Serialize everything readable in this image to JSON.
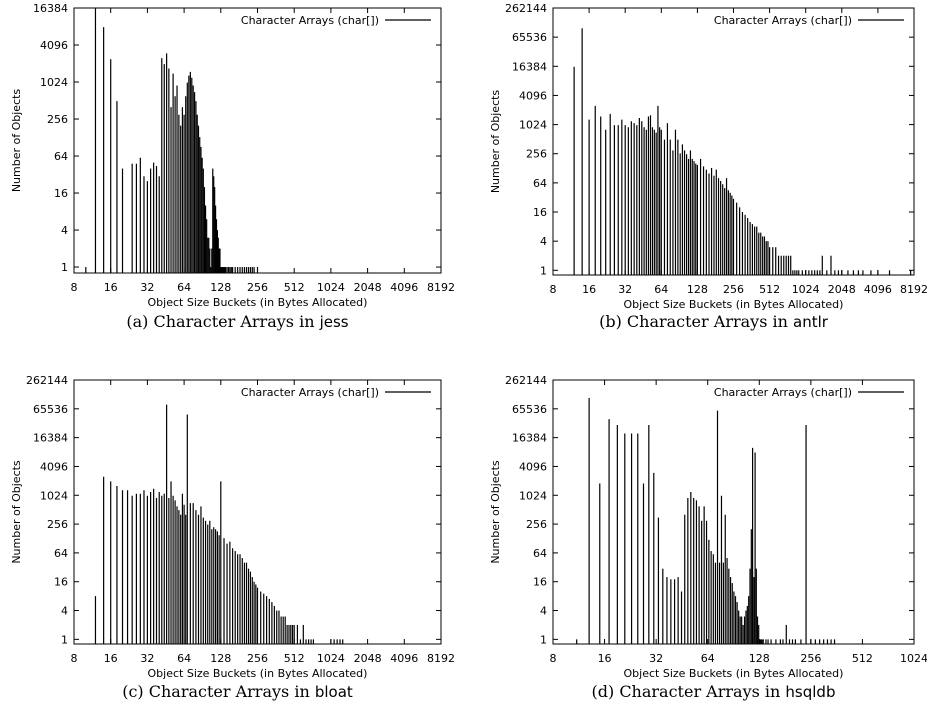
{
  "chart_data": [
    {
      "type": "bar",
      "caption": {
        "prefix": "(a) Character Arrays in ",
        "benchmark": "jess"
      },
      "xlabel": "Object Size Buckets (in Bytes Allocated)",
      "ylabel": "Number of Objects",
      "x_scale": "log2",
      "y_scale": "log2",
      "xlim": [
        8,
        8192
      ],
      "ylim": [
        0.8,
        16384
      ],
      "x_ticks": [
        "8",
        "16",
        "32",
        "64",
        "128",
        "256",
        "512",
        "1024",
        "2048",
        "4096",
        "8192"
      ],
      "y_ticks": [
        "1",
        "4",
        "16",
        "64",
        "256",
        "1024",
        "4096",
        "16384"
      ],
      "grid": false,
      "legend_position": "top-right",
      "series": [
        {
          "name": "Character Arrays (char[])",
          "x": [
            10,
            12,
            14,
            16,
            18,
            20,
            24,
            26,
            28,
            30,
            32,
            34,
            36,
            38,
            40,
            42,
            44,
            46,
            48,
            50,
            52,
            54,
            56,
            58,
            60,
            62,
            64,
            66,
            68,
            70,
            72,
            74,
            76,
            78,
            80,
            82,
            84,
            86,
            88,
            90,
            92,
            94,
            96,
            98,
            100,
            102,
            104,
            106,
            108,
            110,
            112,
            114,
            116,
            118,
            120,
            122,
            124,
            126,
            128,
            130,
            132,
            134,
            136,
            138,
            140,
            144,
            148,
            152,
            156,
            160,
            168,
            176,
            184,
            192,
            200,
            208,
            216,
            224,
            232,
            240,
            256
          ],
          "values": [
            1,
            16384,
            8000,
            2400,
            500,
            40,
            48,
            48,
            60,
            30,
            25,
            40,
            50,
            44,
            30,
            2500,
            2000,
            3000,
            1700,
            400,
            1400,
            600,
            900,
            300,
            200,
            400,
            300,
            600,
            1000,
            1300,
            1500,
            1200,
            900,
            700,
            500,
            300,
            200,
            130,
            90,
            60,
            40,
            20,
            10,
            6,
            3,
            3,
            2,
            1,
            2,
            40,
            30,
            20,
            10,
            6,
            4,
            3,
            2,
            2,
            1,
            1,
            1,
            1,
            1,
            1,
            1,
            1,
            1,
            1,
            1,
            1,
            1,
            1,
            1,
            1,
            1,
            1,
            1,
            1,
            1,
            1,
            1
          ]
        }
      ]
    },
    {
      "type": "bar",
      "caption": {
        "prefix": "(b) Character Arrays in ",
        "benchmark": "antlr"
      },
      "xlabel": "Object Size Buckets (in Bytes Allocated)",
      "ylabel": "Number of Objects",
      "x_scale": "log2",
      "y_scale": "log2",
      "xlim": [
        8,
        8192
      ],
      "ylim": [
        0.8,
        262144
      ],
      "x_ticks": [
        "8",
        "16",
        "32",
        "64",
        "128",
        "256",
        "512",
        "1024",
        "2048",
        "4096",
        "8192"
      ],
      "y_ticks": [
        "1",
        "4",
        "16",
        "64",
        "256",
        "1024",
        "4096",
        "16384",
        "65536",
        "262144"
      ],
      "grid": false,
      "legend_position": "top-right",
      "series": [
        {
          "name": "Character Arrays (char[])",
          "x": [
            12,
            14,
            16,
            18,
            20,
            22,
            24,
            26,
            28,
            30,
            32,
            34,
            36,
            38,
            40,
            42,
            44,
            46,
            48,
            50,
            52,
            54,
            56,
            58,
            60,
            62,
            64,
            68,
            72,
            76,
            80,
            84,
            88,
            92,
            96,
            100,
            104,
            108,
            112,
            116,
            120,
            124,
            128,
            136,
            144,
            152,
            160,
            168,
            176,
            184,
            192,
            200,
            208,
            216,
            224,
            232,
            240,
            248,
            256,
            272,
            288,
            304,
            320,
            336,
            352,
            368,
            384,
            400,
            416,
            432,
            448,
            464,
            480,
            496,
            512,
            544,
            576,
            608,
            640,
            672,
            704,
            736,
            768,
            800,
            832,
            864,
            896,
            960,
            1024,
            1088,
            1152,
            1216,
            1280,
            1344,
            1408,
            1536,
            1664,
            1792,
            1920,
            2048,
            2304,
            2560,
            2816,
            3072,
            3584,
            4096,
            5120,
            7680
          ],
          "values": [
            16000,
            100000,
            1300,
            2500,
            1500,
            800,
            1700,
            1000,
            1000,
            1300,
            1000,
            900,
            1200,
            1100,
            1000,
            1400,
            1200,
            900,
            800,
            1500,
            1600,
            900,
            800,
            700,
            2500,
            900,
            800,
            500,
            1100,
            500,
            300,
            800,
            500,
            260,
            400,
            300,
            250,
            200,
            300,
            200,
            180,
            160,
            150,
            200,
            140,
            120,
            100,
            130,
            90,
            120,
            80,
            70,
            60,
            50,
            80,
            45,
            40,
            35,
            30,
            25,
            20,
            16,
            14,
            12,
            10,
            9,
            8,
            8,
            6,
            6,
            5,
            5,
            4,
            4,
            3,
            3,
            3,
            2,
            2,
            2,
            2,
            2,
            2,
            1,
            1,
            1,
            1,
            1,
            1,
            1,
            1,
            1,
            1,
            1,
            2,
            1,
            2,
            1,
            1,
            1,
            1,
            1,
            1,
            1,
            1,
            1,
            1,
            1
          ]
        }
      ]
    },
    {
      "type": "bar",
      "caption": {
        "prefix": "(c) Character Arrays in ",
        "benchmark": "bloat"
      },
      "xlabel": "Object Size Buckets (in Bytes Allocated)",
      "ylabel": "Number of Objects",
      "x_scale": "log2",
      "y_scale": "log2",
      "xlim": [
        8,
        8192
      ],
      "ylim": [
        0.8,
        262144
      ],
      "x_ticks": [
        "8",
        "16",
        "32",
        "64",
        "128",
        "256",
        "512",
        "1024",
        "2048",
        "4096",
        "8192"
      ],
      "y_ticks": [
        "1",
        "4",
        "16",
        "64",
        "256",
        "1024",
        "4096",
        "16384",
        "65536",
        "262144"
      ],
      "grid": false,
      "legend_position": "top-right",
      "series": [
        {
          "name": "Character Arrays (char[])",
          "x": [
            12,
            14,
            16,
            18,
            20,
            22,
            24,
            26,
            28,
            30,
            32,
            34,
            36,
            38,
            40,
            42,
            44,
            46,
            48,
            50,
            52,
            54,
            56,
            58,
            60,
            62,
            64,
            66,
            68,
            72,
            76,
            80,
            84,
            88,
            92,
            96,
            100,
            104,
            108,
            112,
            116,
            120,
            124,
            128,
            136,
            144,
            152,
            160,
            168,
            176,
            184,
            192,
            200,
            208,
            216,
            224,
            232,
            240,
            248,
            256,
            272,
            288,
            304,
            320,
            336,
            352,
            368,
            384,
            400,
            416,
            432,
            448,
            464,
            480,
            496,
            512,
            544,
            576,
            608,
            640,
            672,
            704,
            736,
            1024,
            1088,
            1152,
            1216,
            1280
          ],
          "values": [
            8,
            2500,
            2000,
            1600,
            1300,
            1300,
            1000,
            1100,
            1100,
            1300,
            1000,
            1200,
            1400,
            900,
            1200,
            1000,
            1100,
            80000,
            900,
            2000,
            1000,
            800,
            600,
            500,
            400,
            1100,
            650,
            400,
            50000,
            700,
            700,
            500,
            400,
            600,
            350,
            300,
            250,
            300,
            200,
            220,
            200,
            180,
            150,
            2000,
            130,
            100,
            110,
            80,
            70,
            60,
            60,
            50,
            40,
            40,
            30,
            26,
            20,
            16,
            14,
            12,
            10,
            9,
            8,
            7,
            6,
            5,
            4,
            4,
            3,
            3,
            3,
            2,
            2,
            2,
            2,
            2,
            2,
            1,
            2,
            1,
            1,
            1,
            1,
            1,
            1,
            1,
            1,
            1
          ]
        }
      ]
    },
    {
      "type": "bar",
      "caption": {
        "prefix": "(d) Character Arrays in ",
        "benchmark": "hsqldb"
      },
      "xlabel": "Object Size Buckets (in Bytes Allocated)",
      "ylabel": "Number of Objects",
      "x_scale": "log2",
      "y_scale": "log2",
      "xlim": [
        8,
        1024
      ],
      "ylim": [
        0.8,
        262144
      ],
      "x_ticks": [
        "8",
        "16",
        "32",
        "64",
        "128",
        "256",
        "512",
        "1024"
      ],
      "y_ticks": [
        "1",
        "4",
        "16",
        "64",
        "256",
        "1024",
        "4096",
        "16384",
        "65536",
        "262144"
      ],
      "grid": false,
      "legend_position": "top-right",
      "series": [
        {
          "name": "Character Arrays (char[])",
          "x": [
            11,
            13,
            15,
            17,
            19,
            21,
            23,
            25,
            27,
            29,
            31,
            33,
            35,
            37,
            39,
            41,
            43,
            45,
            47,
            49,
            51,
            53,
            55,
            57,
            59,
            61,
            63,
            65,
            67,
            69,
            71,
            73,
            75,
            77,
            79,
            81,
            83,
            85,
            87,
            89,
            91,
            93,
            95,
            97,
            99,
            101,
            103,
            105,
            107,
            109,
            111,
            113,
            115,
            117,
            119,
            121,
            123,
            125,
            127,
            129,
            131,
            133,
            135,
            140,
            144,
            150,
            160,
            170,
            176,
            184,
            192,
            200,
            208,
            224,
            240,
            256,
            272,
            288,
            304,
            320,
            336,
            352
          ],
          "values": [
            1,
            110000,
            1800,
            40000,
            30000,
            20000,
            20000,
            20000,
            1800,
            30000,
            3000,
            350,
            30,
            20,
            18,
            18,
            20,
            10,
            400,
            900,
            1200,
            900,
            800,
            600,
            300,
            600,
            300,
            120,
            70,
            60,
            40,
            60000,
            40,
            1000,
            40,
            400,
            50,
            30,
            20,
            15,
            10,
            8,
            6,
            4,
            3,
            3,
            2,
            3,
            4,
            5,
            8,
            30,
            200,
            10000,
            20,
            8000,
            30,
            3,
            2,
            1,
            1,
            1,
            1,
            1,
            1,
            1,
            1,
            1,
            1,
            2,
            1,
            1,
            1,
            1,
            30000,
            1,
            1,
            1,
            1,
            1,
            1,
            1
          ]
        }
      ]
    }
  ]
}
